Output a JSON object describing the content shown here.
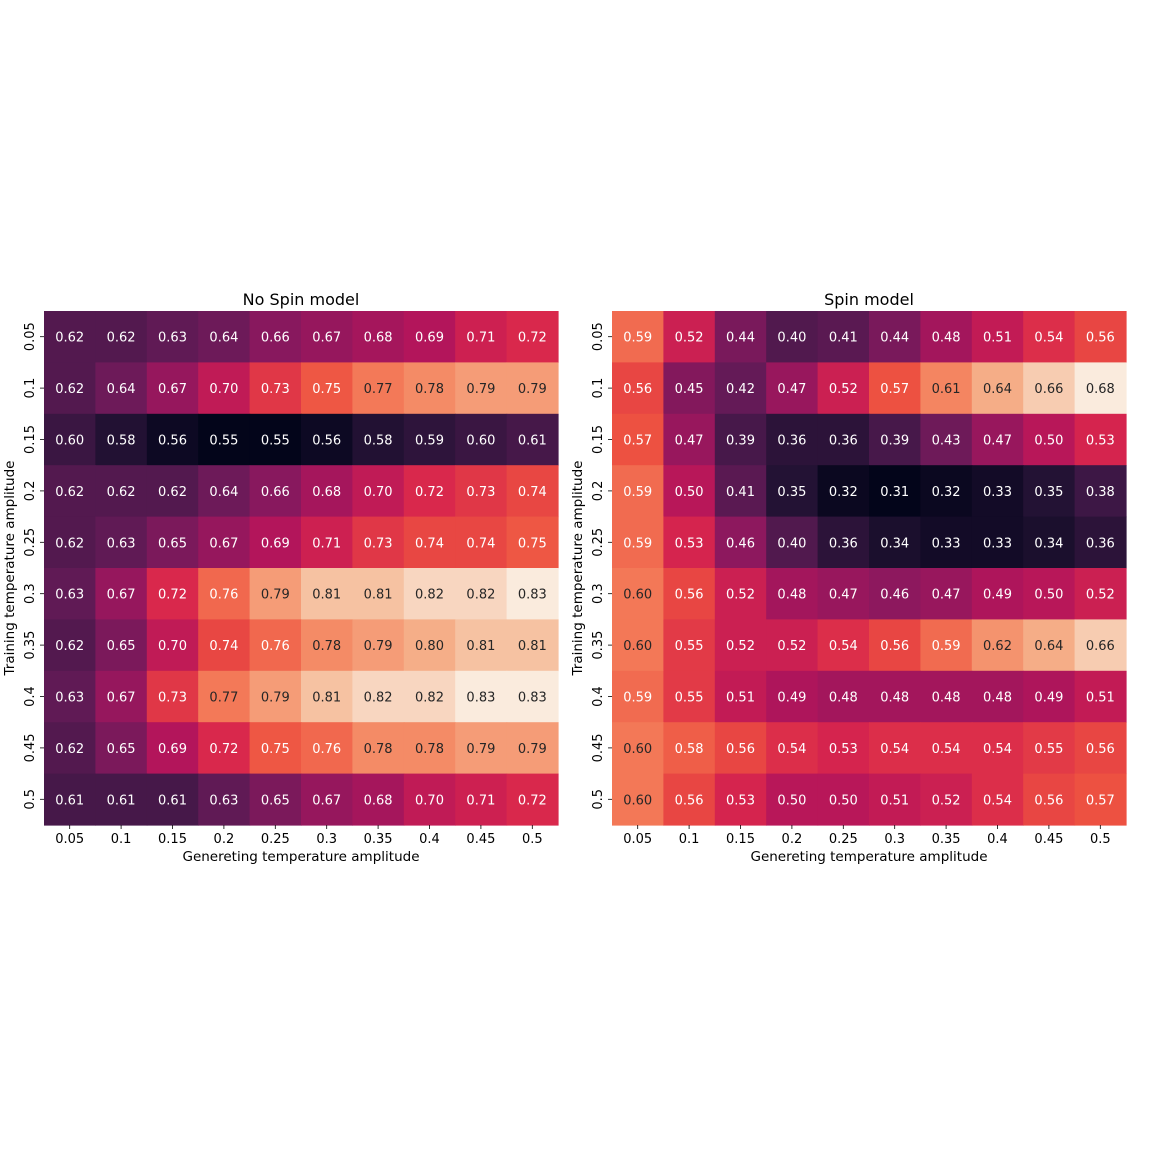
{
  "chart_data": [
    {
      "type": "heatmap",
      "title": "No Spin model",
      "xlabel": "Genereting temperature amplitude",
      "ylabel": "Training temperature amplitude",
      "x_categories": [
        "0.05",
        "0.1",
        "0.15",
        "0.2",
        "0.25",
        "0.3",
        "0.35",
        "0.4",
        "0.45",
        "0.5"
      ],
      "y_categories": [
        "0.05",
        "0.1",
        "0.15",
        "0.2",
        "0.25",
        "0.3",
        "0.35",
        "0.4",
        "0.45",
        "0.5"
      ],
      "colormap": "rocket",
      "vmin": 0.55,
      "vmax": 0.83,
      "values": [
        [
          0.62,
          0.62,
          0.63,
          0.64,
          0.66,
          0.67,
          0.68,
          0.69,
          0.71,
          0.72
        ],
        [
          0.62,
          0.64,
          0.67,
          0.7,
          0.73,
          0.75,
          0.77,
          0.78,
          0.79,
          0.79
        ],
        [
          0.6,
          0.58,
          0.56,
          0.55,
          0.55,
          0.56,
          0.58,
          0.59,
          0.6,
          0.61
        ],
        [
          0.62,
          0.62,
          0.62,
          0.64,
          0.66,
          0.68,
          0.7,
          0.72,
          0.73,
          0.74
        ],
        [
          0.62,
          0.63,
          0.65,
          0.67,
          0.69,
          0.71,
          0.73,
          0.74,
          0.74,
          0.75
        ],
        [
          0.63,
          0.67,
          0.72,
          0.76,
          0.79,
          0.81,
          0.81,
          0.82,
          0.82,
          0.83
        ],
        [
          0.62,
          0.65,
          0.7,
          0.74,
          0.76,
          0.78,
          0.79,
          0.8,
          0.81,
          0.81
        ],
        [
          0.63,
          0.67,
          0.73,
          0.77,
          0.79,
          0.81,
          0.82,
          0.82,
          0.83,
          0.83
        ],
        [
          0.62,
          0.65,
          0.69,
          0.72,
          0.75,
          0.76,
          0.78,
          0.78,
          0.79,
          0.79
        ],
        [
          0.61,
          0.61,
          0.61,
          0.63,
          0.65,
          0.67,
          0.68,
          0.7,
          0.71,
          0.72
        ]
      ]
    },
    {
      "type": "heatmap",
      "title": "Spin model",
      "xlabel": "Genereting temperature amplitude",
      "ylabel": "Training temperature amplitude",
      "x_categories": [
        "0.05",
        "0.1",
        "0.15",
        "0.2",
        "0.25",
        "0.3",
        "0.35",
        "0.4",
        "0.45",
        "0.5"
      ],
      "y_categories": [
        "0.05",
        "0.1",
        "0.15",
        "0.2",
        "0.25",
        "0.3",
        "0.35",
        "0.4",
        "0.45",
        "0.5"
      ],
      "colormap": "rocket",
      "vmin": 0.31,
      "vmax": 0.68,
      "values": [
        [
          0.59,
          0.52,
          0.44,
          0.4,
          0.41,
          0.44,
          0.48,
          0.51,
          0.54,
          0.56
        ],
        [
          0.56,
          0.45,
          0.42,
          0.47,
          0.52,
          0.57,
          0.61,
          0.64,
          0.66,
          0.68
        ],
        [
          0.57,
          0.47,
          0.39,
          0.36,
          0.36,
          0.39,
          0.43,
          0.47,
          0.5,
          0.53
        ],
        [
          0.59,
          0.5,
          0.41,
          0.35,
          0.32,
          0.31,
          0.32,
          0.33,
          0.35,
          0.38
        ],
        [
          0.59,
          0.53,
          0.46,
          0.4,
          0.36,
          0.34,
          0.33,
          0.33,
          0.34,
          0.36
        ],
        [
          0.6,
          0.56,
          0.52,
          0.48,
          0.47,
          0.46,
          0.47,
          0.49,
          0.5,
          0.52
        ],
        [
          0.6,
          0.55,
          0.52,
          0.52,
          0.54,
          0.56,
          0.59,
          0.62,
          0.64,
          0.66
        ],
        [
          0.59,
          0.55,
          0.51,
          0.49,
          0.48,
          0.48,
          0.48,
          0.48,
          0.49,
          0.51
        ],
        [
          0.6,
          0.58,
          0.56,
          0.54,
          0.53,
          0.54,
          0.54,
          0.54,
          0.55,
          0.56
        ],
        [
          0.6,
          0.56,
          0.53,
          0.5,
          0.5,
          0.51,
          0.52,
          0.54,
          0.56,
          0.57
        ]
      ]
    }
  ]
}
